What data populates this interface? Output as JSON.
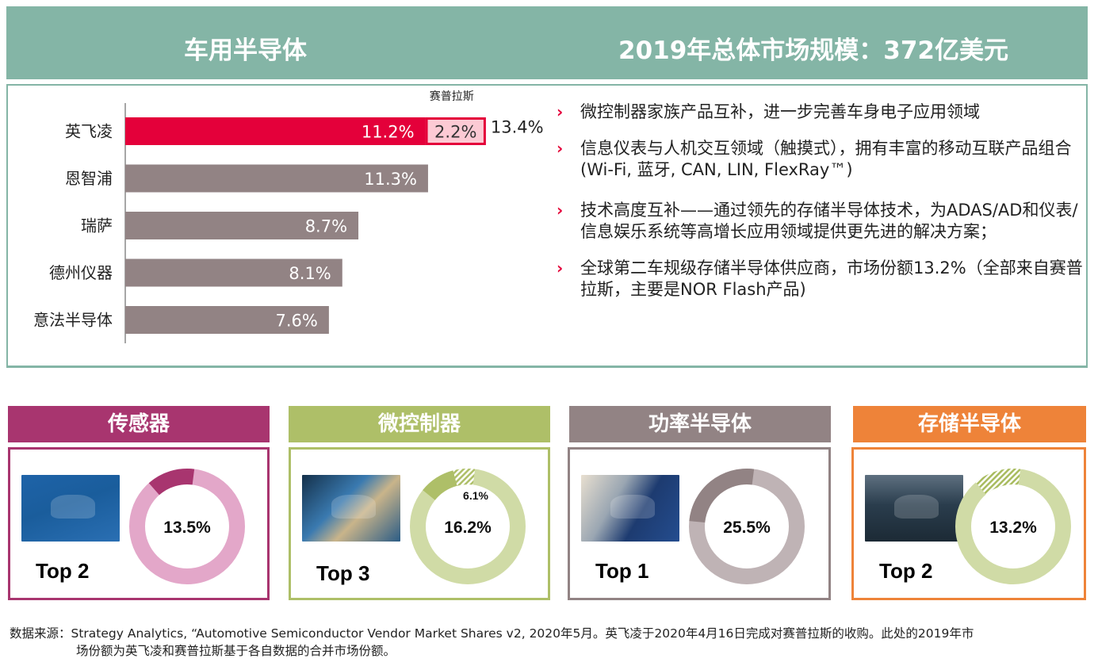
{
  "header": {
    "title": "车用半导体",
    "market": "2019年总体市场规模：372亿美元"
  },
  "chart_data": {
    "type": "bar",
    "orientation": "horizontal",
    "title": "",
    "xlabel": "",
    "ylabel": "",
    "xlim": [
      0,
      15
    ],
    "categories": [
      "英飞凌",
      "恩智浦",
      "瑞萨",
      "德州仪器",
      "意法半导体"
    ],
    "series": [
      {
        "name": "base",
        "values": [
          11.2,
          11.3,
          8.7,
          8.1,
          7.6
        ],
        "labels": [
          "11.2%",
          "11.3%",
          "8.7%",
          "8.1%",
          "7.6%"
        ]
      },
      {
        "name": "赛普拉斯",
        "values": [
          2.2,
          0,
          0,
          0,
          0
        ],
        "labels": [
          "2.2%",
          "",
          "",
          "",
          ""
        ]
      }
    ],
    "totals": [
      {
        "category": "英飞凌",
        "label": "13.4%",
        "value": 13.4
      }
    ],
    "annotation": "赛普拉斯",
    "colors": {
      "highlight": "#e4003a",
      "highlight_addon_fill": "#fccad4",
      "others": "#928384"
    }
  },
  "bullets": [
    "微控制器家族产品互补，进一步完善车身电子应用领域",
    "信息仪表与人机交互领域（触摸式），拥有丰富的移动互联产品组合 (Wi-Fi, 蓝牙, CAN, LIN,  FlexRay™)",
    "技术高度互补——通过领先的存储半导体技术，为ADAS/AD和仪表/信息娱乐系统等高增长应用领域提供更先进的解决方案；",
    "全球第二车规级存储半导体供应商，市场份额13.2%（全部来自赛普拉斯，主要是NOR Flash产品)"
  ],
  "bullet_marker": "›",
  "cards": [
    {
      "title": "传感器",
      "rank": "Top 2",
      "share": "13.5%",
      "share_value": 13.5,
      "extra": null,
      "extra_value": 0,
      "color": "#a8356f",
      "ring": "#e3a7c9",
      "image": "car-sensors-image"
    },
    {
      "title": "微控制器",
      "rank": "Top 3",
      "share": "16.2%",
      "share_value": 10.1,
      "extra": "6.1%",
      "extra_value": 6.1,
      "color": "#aebf68",
      "ring": "#d0dba6",
      "image": "autonomous-car-interior-image"
    },
    {
      "title": "功率半导体",
      "rank": "Top 1",
      "share": "25.5%",
      "share_value": 25.5,
      "extra": null,
      "extra_value": 0,
      "color": "#928384",
      "ring": "#bfb3b5",
      "image": "ev-charging-image"
    },
    {
      "title": "存储半导体",
      "rank": "Top 2",
      "share": "13.2%",
      "share_value": 0,
      "extra": null,
      "extra_value": 13.2,
      "color": "#ee8339",
      "ring": "#d0dba6",
      "image": "connected-cockpit-image"
    }
  ],
  "footnote": {
    "line1": "数据来源：Strategy Analytics, “Automotive Semiconductor Vendor Market Shares v2, 2020年5月。英飞凌于2020年4月16日完成对赛普拉斯的收购。此处的2019年市",
    "line2": "场份额为英飞凌和赛普拉斯基于各自数据的合并市场份额。"
  }
}
